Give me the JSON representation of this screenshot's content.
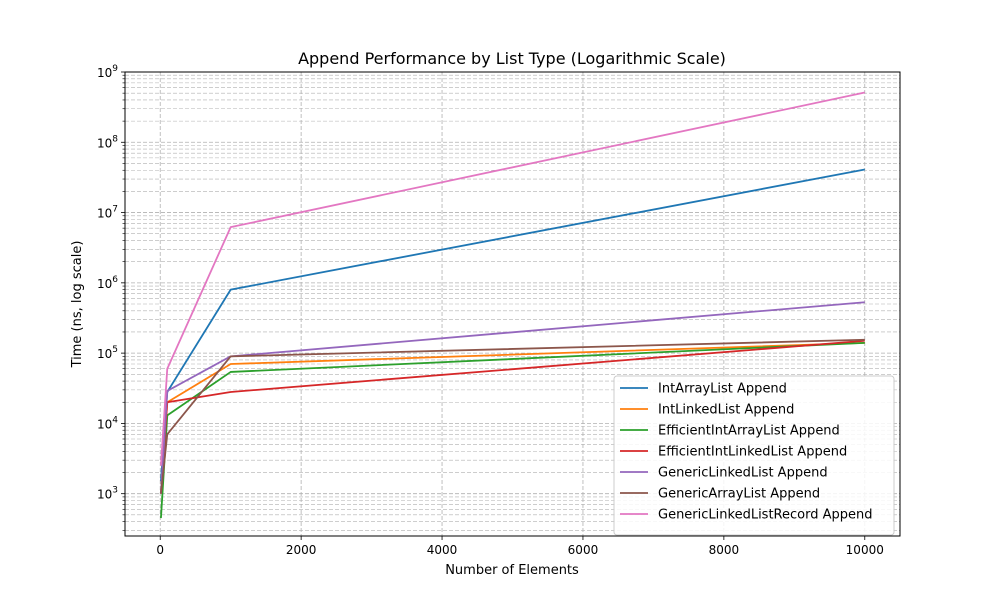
{
  "chart_data": {
    "type": "line",
    "title": "Append Performance by List Type (Logarithmic Scale)",
    "xlabel": "Number of Elements",
    "ylabel": "Time (ns, log scale)",
    "xlim": [
      -500,
      10500
    ],
    "ylim": [
      250,
      1000000000
    ],
    "yscale": "log",
    "grid": true,
    "grid_style": "dashed",
    "legend_position": "lower-right",
    "x": [
      10,
      100,
      1000,
      10000
    ],
    "x_ticks": [
      0,
      2000,
      4000,
      6000,
      8000,
      10000
    ],
    "x_tick_labels": [
      "0",
      "2000",
      "4000",
      "6000",
      "8000",
      "10000"
    ],
    "y_ticks": [
      1000,
      10000,
      100000,
      1000000,
      10000000,
      100000000,
      1000000000
    ],
    "y_tick_labels": [
      {
        "base": "10",
        "exp": "3"
      },
      {
        "base": "10",
        "exp": "4"
      },
      {
        "base": "10",
        "exp": "5"
      },
      {
        "base": "10",
        "exp": "6"
      },
      {
        "base": "10",
        "exp": "7"
      },
      {
        "base": "10",
        "exp": "8"
      },
      {
        "base": "10",
        "exp": "9"
      }
    ],
    "series": [
      {
        "name": "IntArrayList Append",
        "color": "#1f77b4",
        "values": [
          1500,
          28000,
          800000,
          41000000
        ]
      },
      {
        "name": "IntLinkedList Append",
        "color": "#ff7f0e",
        "values": [
          1000,
          20000,
          70000,
          140000
        ]
      },
      {
        "name": "EfficientIntArrayList Append",
        "color": "#2ca02c",
        "values": [
          450,
          13000,
          54000,
          140000
        ]
      },
      {
        "name": "EfficientIntLinkedList Append",
        "color": "#d62728",
        "values": [
          1000,
          20000,
          28000,
          150000
        ]
      },
      {
        "name": "GenericLinkedList Append",
        "color": "#9467bd",
        "values": [
          1000,
          29000,
          90000,
          530000
        ]
      },
      {
        "name": "GenericArrayList Append",
        "color": "#8c564b",
        "values": [
          1000,
          7000,
          90000,
          155000
        ]
      },
      {
        "name": "GenericLinkedListRecord Append",
        "color": "#e377c2",
        "values": [
          2500,
          60000,
          6200000,
          510000000
        ]
      }
    ]
  }
}
